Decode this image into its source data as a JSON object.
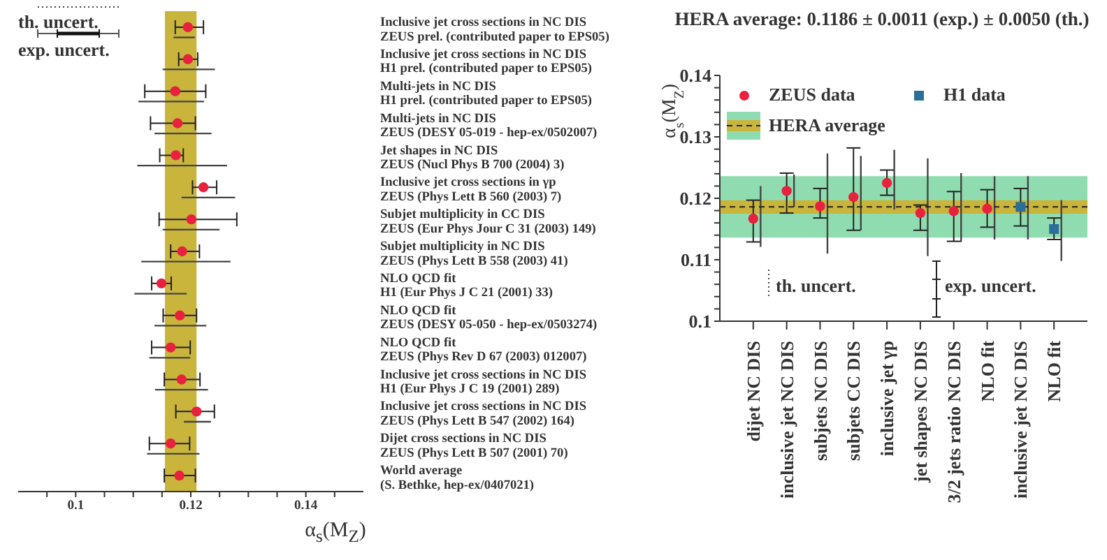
{
  "chart_data": [
    {
      "type": "scatter",
      "orientation": "horizontal",
      "categories": [
        "Inclusive jet cross sections in NC DIS\nZEUS prel. (contributed paper to EPS05)",
        "Inclusive jet cross sections in NC DIS\nH1 prel. (contributed paper to EPS05)",
        "Multi-jets in NC DIS\nH1 prel. (contributed paper to EPS05)",
        "Multi-jets in NC DIS\nZEUS (DESY 05-019 - hep-ex/0502007)",
        "Jet shapes in NC DIS\nZEUS (Nucl Phys B 700 (2004) 3)",
        "Inclusive jet cross sections in γp\nZEUS (Phys Lett B 560 (2003) 7)",
        "Subjet multiplicity in CC DIS\nZEUS (Eur Phys Jour C 31 (2003) 149)",
        "Subjet multiplicity in NC DIS\nZEUS (Phys Lett B 558 (2003) 41)",
        "NLO QCD fit\nH1 (Eur Phys J C 21 (2001) 33)",
        "NLO QCD fit\nZEUS (DESY 05-050 - hep-ex/0503274)",
        "NLO QCD fit\nZEUS (Phys Rev D 67 (2003) 012007)",
        "Inclusive jet cross sections in NC DIS\nH1 (Eur Phys J C 19 (2001) 289)",
        "Inclusive jet cross sections in NC DIS\nZEUS (Phys Lett B 547 (2002) 164)",
        "Dijet cross sections in NC DIS\nZEUS (Phys Lett B 507 (2001) 70)",
        "World average\n(S. Bethke, hep-ex/0407021)"
      ],
      "series": [
        {
          "color": "#e8213f",
          "marker": "circle",
          "values": [
            0.1195,
            0.1195,
            0.1173,
            0.1177,
            0.1174,
            0.1222,
            0.1201,
            0.1185,
            0.1149,
            0.1181,
            0.1165,
            0.1184,
            0.121,
            0.1165,
            0.118
          ],
          "errors": [
            [
              0.1173,
              0.1222
            ],
            [
              0.1179,
              0.1212
            ],
            [
              0.112,
              0.1226
            ],
            [
              0.113,
              0.1208
            ],
            [
              0.1146,
              0.1187
            ],
            [
              0.1203,
              0.1245
            ],
            [
              0.1145,
              0.128
            ],
            [
              0.1165,
              0.1215
            ],
            [
              0.1132,
              0.1166
            ],
            [
              0.1152,
              0.121
            ],
            [
              0.1132,
              0.1199
            ],
            [
              0.1154,
              0.1216
            ],
            [
              0.1174,
              0.1241
            ],
            [
              0.1128,
              0.1198
            ],
            [
              0.1154,
              0.1208
            ]
          ]
        },
        {
          "type": "bar",
          "color": "#444444",
          "base": [
            0.117,
            0.1151,
            0.1109,
            0.1137,
            0.1107,
            0.1184,
            0.1151,
            0.1114,
            0.1102,
            0.1137,
            0.1128,
            0.1138,
            0.1188,
            0.1124,
            null
          ],
          "values": [
            0.0037,
            0.0091,
            0.0114,
            0.0099,
            0.0156,
            0.0093,
            0.0099,
            0.0155,
            0.0091,
            0.009,
            0.0071,
            0.0092,
            0.0047,
            0.0091,
            null
          ]
        }
      ],
      "bands": [
        {
          "axis": "x",
          "from": 0.1155,
          "to": 0.121,
          "color": "#c9b43c"
        }
      ],
      "xlim": [
        0.09,
        0.15
      ],
      "xticks": [
        {
          "value": 0.095,
          "label": null
        },
        0.1,
        {
          "value": 0.105,
          "label": null
        },
        {
          "value": 0.11,
          "label": null
        },
        {
          "value": 0.115,
          "label": null
        },
        0.12,
        {
          "value": 0.125,
          "label": null
        },
        {
          "value": 0.13,
          "label": null
        },
        {
          "value": 0.135,
          "label": null
        },
        0.14,
        {
          "value": 0.145,
          "label": null
        }
      ],
      "xlabel": "α$_{s}$(M$_{Z}$)",
      "annotations": [
        "th. uncert.",
        "exp. uncert."
      ]
    },
    {
      "type": "scatter",
      "title": "HERA average: 0.1186 ± 0.0011 (exp.) ± 0.0050 (th.)",
      "categories": [
        "dijet NC DIS",
        "inclusive jet NC DIS",
        "subjets NC DIS",
        "subjets CC DIS",
        "inclusive jet γp",
        "jet shapes NC DIS",
        "3/2 jets ratio NC DIS",
        "NLO fit",
        "inclusive jet NC DIS",
        "NLO fit"
      ],
      "series": [
        {
          "name": "ZEUS data",
          "color": "#e8213f",
          "marker": "circle",
          "values": [
            0.1167,
            0.1212,
            0.1187,
            0.1202,
            0.1225,
            0.1176,
            0.1179,
            0.1183,
            null,
            null
          ],
          "errors": [
            [
              0.1129,
              0.1197
            ],
            [
              0.1176,
              0.1241
            ],
            [
              0.1168,
              0.1216
            ],
            [
              0.1148,
              0.1282
            ],
            [
              0.1205,
              0.1246
            ],
            [
              0.1148,
              0.1189
            ],
            [
              0.113,
              0.1211
            ],
            [
              0.1153,
              0.1214
            ],
            null,
            null
          ]
        },
        {
          "name": "H1 data",
          "color": "#2a6e9c",
          "marker": "square",
          "values": [
            null,
            null,
            null,
            null,
            null,
            null,
            null,
            null,
            0.1186,
            0.115
          ],
          "errors": [
            null,
            null,
            null,
            null,
            null,
            null,
            null,
            null,
            [
              0.1155,
              0.1216
            ],
            [
              0.1133,
              0.1168
            ]
          ]
        },
        {
          "type": "bar",
          "color": "#444444",
          "base": [
            0.1121,
            0.1186,
            0.111,
            0.1148,
            0.1182,
            0.1106,
            0.1129,
            0.1133,
            0.1133,
            0.1098
          ],
          "values": [
            0.0099,
            0.0053,
            0.0163,
            0.0121,
            0.0097,
            0.0159,
            0.0112,
            0.0103,
            0.0103,
            0.0099
          ]
        }
      ],
      "bands": [
        {
          "axis": "y",
          "from": 0.1136,
          "to": 0.1236,
          "color": "#8fdcb0"
        },
        {
          "axis": "y",
          "from": 0.1175,
          "to": 0.1197,
          "color": "#c9b43c",
          "label": "HERA average"
        }
      ],
      "ref_lines": [
        {
          "axis": "y",
          "value": 0.1186,
          "line_style": "dashed",
          "color": "#222222"
        }
      ],
      "ylim": [
        0.1,
        0.14
      ],
      "yticks": [
        0.1,
        {
          "value": 0.102,
          "label": null
        },
        {
          "value": 0.104,
          "label": null
        },
        {
          "value": 0.106,
          "label": null
        },
        {
          "value": 0.108,
          "label": null
        },
        0.11,
        {
          "value": 0.112,
          "label": null
        },
        {
          "value": 0.114,
          "label": null
        },
        {
          "value": 0.116,
          "label": null
        },
        {
          "value": 0.118,
          "label": null
        },
        0.12,
        {
          "value": 0.122,
          "label": null
        },
        {
          "value": 0.124,
          "label": null
        },
        {
          "value": 0.126,
          "label": null
        },
        {
          "value": 0.128,
          "label": null
        },
        0.13,
        {
          "value": 0.132,
          "label": null
        },
        {
          "value": 0.134,
          "label": null
        },
        {
          "value": 0.136,
          "label": null
        },
        {
          "value": 0.138,
          "label": null
        },
        0.14
      ],
      "ylabel": "α$_{s}$(M$_{Z}$)",
      "legend": "top",
      "annotations": [
        "th. uncert.",
        "exp. uncert."
      ]
    }
  ]
}
